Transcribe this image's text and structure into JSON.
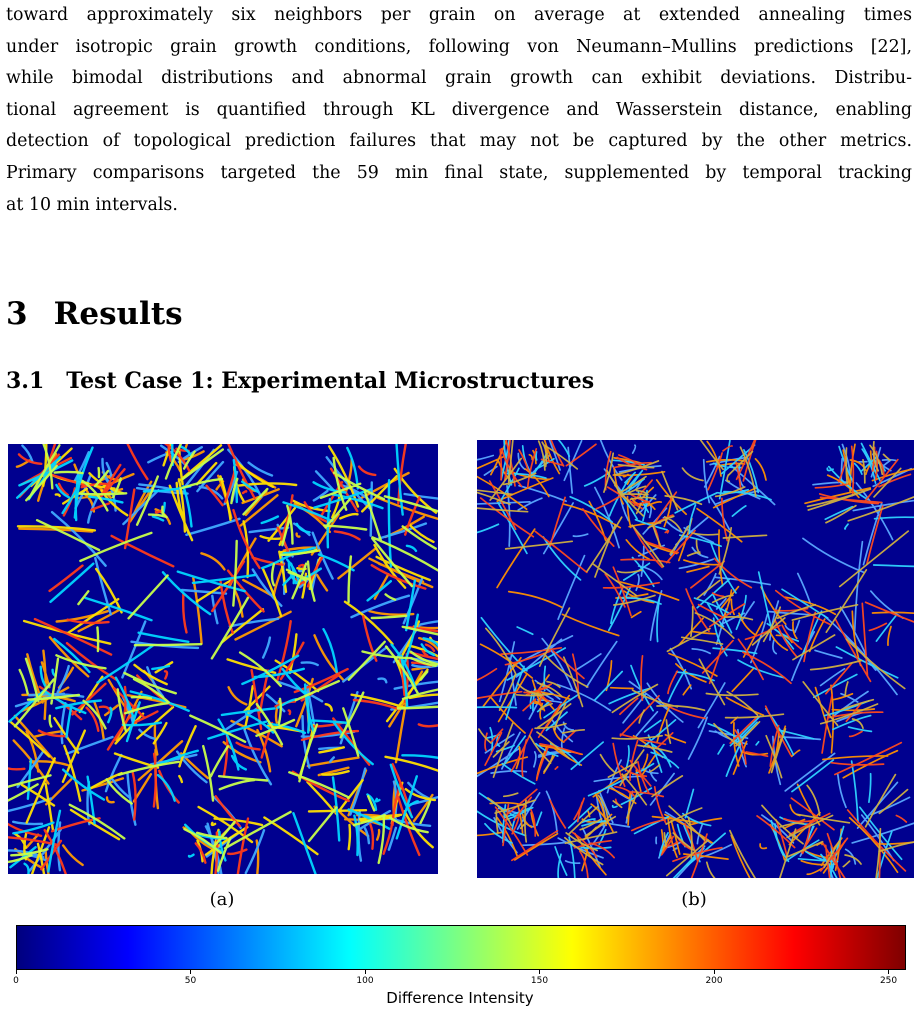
{
  "paragraph_lines": [
    "toward approximately six neighbors per grain on average at extended annealing times",
    "under isotropic grain growth conditions, following von Neumann–Mullins predictions [22],",
    "while bimodal distributions and abnormal grain growth can exhibit deviations. Distribu-",
    "tional agreement is quantified through KL divergence and Wasserstein distance, enabling",
    "detection of topological prediction failures that may not be captured by the other metrics.",
    "Primary comparisons targeted the 59 min final state, supplemented by temporal tracking",
    "at 10 min intervals."
  ],
  "section": {
    "number": "3",
    "title": "Results"
  },
  "subsection": {
    "number": "3.1",
    "title": "Test Case 1: Experimental Microstructures"
  },
  "figures": [
    {
      "caption": "(a)"
    },
    {
      "caption": "(b)"
    }
  ],
  "colorbar": {
    "label": "Difference Intensity",
    "ticks": [
      "0",
      "50",
      "100",
      "150",
      "200",
      "250"
    ],
    "colormap": "jet",
    "range": [
      0,
      255
    ]
  },
  "colors": {
    "panel_background": "#00008f"
  }
}
